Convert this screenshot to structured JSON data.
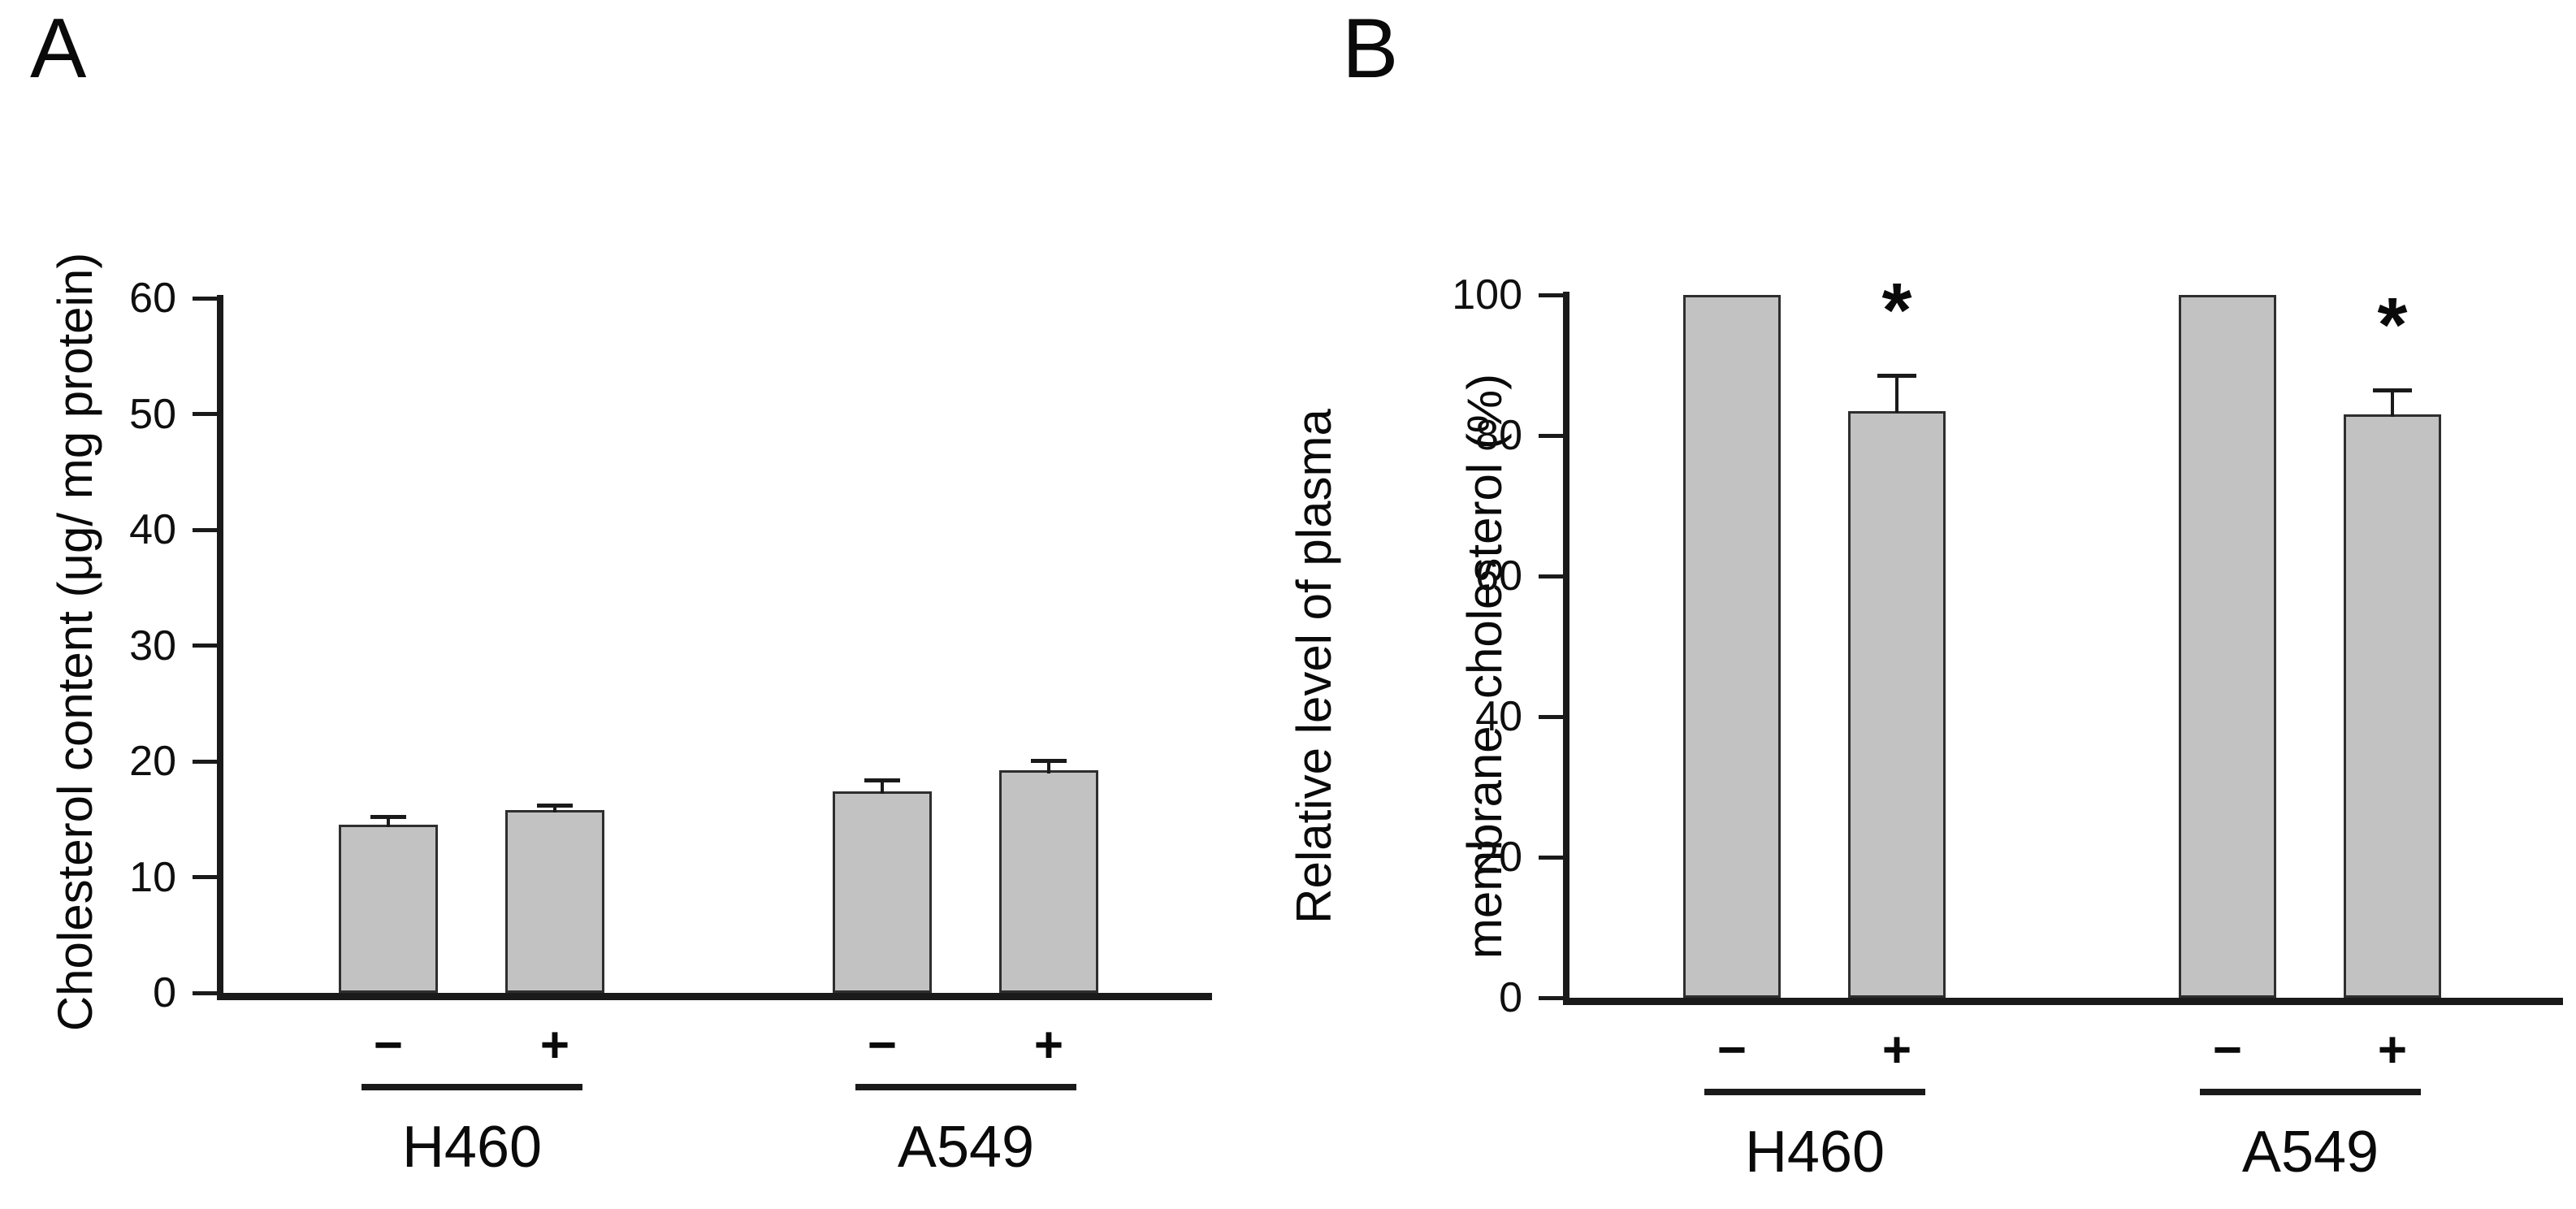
{
  "figure": {
    "colors": {
      "background": "#ffffff",
      "bar_fill": "#c2c2c2",
      "bar_border": "#2e2e2e",
      "axis": "#1a1a1a",
      "text": "#0a0a0a"
    },
    "significance_marker": "*"
  },
  "chart_data": [
    {
      "type": "bar",
      "panel_letter": "A",
      "title": "",
      "xlabel": "",
      "ylabel": "Cholesterol content (μg/ mg protein)",
      "ylabel_lines": [
        "Cholesterol content (μg/ mg protein)"
      ],
      "ylim": [
        0,
        60
      ],
      "yticks": [
        60,
        50,
        40,
        30,
        20,
        10,
        0
      ],
      "grid": false,
      "legend": null,
      "groups": [
        {
          "label": "H460",
          "bars": [
            {
              "condition": "−",
              "value": 14.5,
              "error_plus": 0.7,
              "significant": false
            },
            {
              "condition": "+",
              "value": 15.8,
              "error_plus": 0.4,
              "significant": false
            }
          ]
        },
        {
          "label": "A549",
          "bars": [
            {
              "condition": "−",
              "value": 17.4,
              "error_plus": 1.0,
              "significant": false
            },
            {
              "condition": "+",
              "value": 19.2,
              "error_plus": 0.9,
              "significant": false
            }
          ]
        }
      ]
    },
    {
      "type": "bar",
      "panel_letter": "B",
      "title": "",
      "xlabel": "",
      "ylabel": "Relative level of plasma membrane cholesterol (%)",
      "ylabel_lines": [
        "Relative level of plasma",
        "membrane  cholesterol (%)"
      ],
      "ylim": [
        0,
        100
      ],
      "yticks": [
        100,
        80,
        60,
        40,
        20,
        0
      ],
      "grid": false,
      "legend": null,
      "groups": [
        {
          "label": "H460",
          "bars": [
            {
              "condition": "−",
              "value": 100,
              "error_plus": 0,
              "significant": false
            },
            {
              "condition": "+",
              "value": 83.5,
              "error_plus": 5.0,
              "significant": true
            }
          ]
        },
        {
          "label": "A549",
          "bars": [
            {
              "condition": "−",
              "value": 100,
              "error_plus": 0,
              "significant": false
            },
            {
              "condition": "+",
              "value": 83.0,
              "error_plus": 3.5,
              "significant": true
            }
          ]
        }
      ]
    }
  ]
}
